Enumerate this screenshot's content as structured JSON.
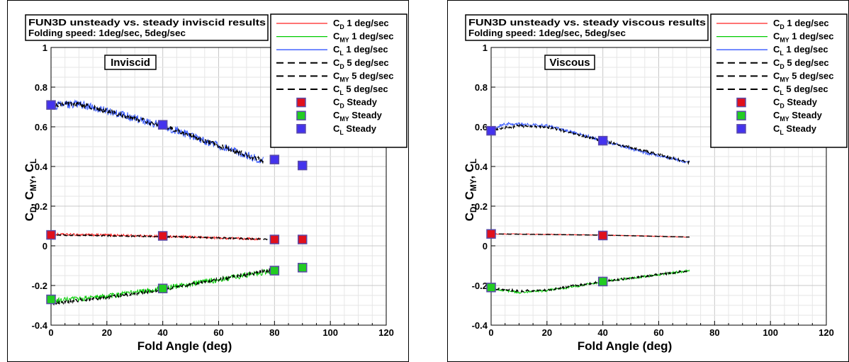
{
  "chart_data": [
    {
      "type": "line",
      "title_lines": [
        "FUN3D unsteady vs. steady inviscid results",
        "Folding speed: 1deg/sec, 5deg/sec"
      ],
      "tag": "Inviscid",
      "xlabel": "Fold Angle (deg)",
      "ylabel": "C_D, C_MY, C_L",
      "xlim": [
        0,
        120
      ],
      "ylim": [
        -0.4,
        1.0
      ],
      "xticks": [
        0,
        20,
        40,
        60,
        80,
        100,
        120
      ],
      "yticks": [
        -0.4,
        -0.2,
        0,
        0.2,
        0.4,
        0.6,
        0.8,
        1
      ],
      "ytick_labels": [
        "-0.4",
        "-0.2",
        "0",
        "0.2",
        "0.4",
        "0.6",
        "0.8",
        "1"
      ],
      "grid": true,
      "legend_position": "top-right",
      "series": [
        {
          "name": "C_D 1 deg/sec",
          "color": "#ff2020",
          "style": "solid",
          "noise": 0.006,
          "points": [
            [
              0,
              0.058
            ],
            [
              20,
              0.054
            ],
            [
              40,
              0.048
            ],
            [
              60,
              0.04
            ],
            [
              75,
              0.034
            ]
          ]
        },
        {
          "name": "C_MY 1 deg/sec",
          "color": "#00cc00",
          "style": "solid",
          "noise": 0.014,
          "points": [
            [
              0,
              -0.28
            ],
            [
              20,
              -0.255
            ],
            [
              40,
              -0.215
            ],
            [
              60,
              -0.17
            ],
            [
              80,
              -0.125
            ]
          ]
        },
        {
          "name": "C_L 1 deg/sec",
          "color": "#3355ff",
          "style": "solid",
          "noise": 0.02,
          "points": [
            [
              0,
              0.705
            ],
            [
              10,
              0.715
            ],
            [
              20,
              0.68
            ],
            [
              30,
              0.645
            ],
            [
              40,
              0.605
            ],
            [
              50,
              0.555
            ],
            [
              60,
              0.505
            ],
            [
              70,
              0.455
            ],
            [
              76,
              0.43
            ]
          ]
        },
        {
          "name": "C_D 5 deg/sec",
          "color": "#000000",
          "style": "dashed",
          "noise": 0.003,
          "points": [
            [
              0,
              0.055
            ],
            [
              40,
              0.047
            ],
            [
              78,
              0.033
            ]
          ]
        },
        {
          "name": "C_MY 5 deg/sec",
          "color": "#000000",
          "style": "dashed",
          "noise": 0.008,
          "points": [
            [
              0,
              -0.29
            ],
            [
              20,
              -0.26
            ],
            [
              40,
              -0.22
            ],
            [
              60,
              -0.17
            ],
            [
              80,
              -0.12
            ]
          ]
        },
        {
          "name": "C_L 5 deg/sec",
          "color": "#000000",
          "style": "dashed",
          "noise": 0.012,
          "points": [
            [
              0,
              0.71
            ],
            [
              10,
              0.715
            ],
            [
              20,
              0.68
            ],
            [
              40,
              0.605
            ],
            [
              60,
              0.505
            ],
            [
              76,
              0.43
            ]
          ]
        }
      ],
      "steady": [
        {
          "name": "C_D Steady",
          "color": "#e0101c",
          "points": [
            [
              0,
              0.055
            ],
            [
              40,
              0.05
            ],
            [
              80,
              0.032
            ],
            [
              90,
              0.032
            ]
          ]
        },
        {
          "name": "C_MY Steady",
          "color": "#22cc22",
          "points": [
            [
              0,
              -0.27
            ],
            [
              40,
              -0.215
            ],
            [
              80,
              -0.125
            ],
            [
              90,
              -0.11
            ]
          ]
        },
        {
          "name": "C_L Steady",
          "color": "#4433ee",
          "points": [
            [
              0,
              0.71
            ],
            [
              40,
              0.61
            ],
            [
              80,
              0.435
            ],
            [
              90,
              0.405
            ]
          ]
        }
      ]
    },
    {
      "type": "line",
      "title_lines": [
        "FUN3D unsteady vs. steady viscous results",
        "Folding speed: 1deg/sec, 5deg/sec"
      ],
      "tag": "Viscous",
      "xlabel": "Fold Angle (deg)",
      "ylabel": "C_D, C_MY, C_L",
      "xlim": [
        0,
        120
      ],
      "ylim": [
        -0.4,
        1.0
      ],
      "xticks": [
        0,
        20,
        40,
        60,
        80,
        100,
        120
      ],
      "yticks": [
        -0.4,
        -0.2,
        0,
        0.2,
        0.4,
        0.6,
        0.8,
        1
      ],
      "ytick_labels": [
        "-0.4",
        "-0.2",
        "0",
        "0.2",
        "0.4",
        "0.6",
        "0.8",
        "1"
      ],
      "grid": true,
      "legend_position": "top-right",
      "series": [
        {
          "name": "C_D 1 deg/sec",
          "color": "#ff2020",
          "style": "solid",
          "noise": 0.002,
          "points": [
            [
              0,
              0.06
            ],
            [
              20,
              0.058
            ],
            [
              40,
              0.054
            ],
            [
              60,
              0.048
            ],
            [
              71,
              0.044
            ]
          ]
        },
        {
          "name": "C_MY 1 deg/sec",
          "color": "#00cc00",
          "style": "solid",
          "noise": 0.006,
          "points": [
            [
              0,
              -0.215
            ],
            [
              10,
              -0.235
            ],
            [
              20,
              -0.225
            ],
            [
              30,
              -0.205
            ],
            [
              40,
              -0.18
            ],
            [
              55,
              -0.155
            ],
            [
              71,
              -0.125
            ]
          ]
        },
        {
          "name": "C_L 1 deg/sec",
          "color": "#3355ff",
          "style": "solid",
          "noise": 0.008,
          "points": [
            [
              0,
              0.585
            ],
            [
              5,
              0.615
            ],
            [
              15,
              0.61
            ],
            [
              20,
              0.605
            ],
            [
              30,
              0.57
            ],
            [
              40,
              0.53
            ],
            [
              55,
              0.47
            ],
            [
              71,
              0.42
            ]
          ]
        },
        {
          "name": "C_D 5 deg/sec",
          "color": "#000000",
          "style": "dashed",
          "noise": 0.0,
          "points": [
            [
              0,
              0.06
            ],
            [
              40,
              0.054
            ],
            [
              71,
              0.044
            ]
          ]
        },
        {
          "name": "C_MY 5 deg/sec",
          "color": "#000000",
          "style": "dashed",
          "noise": 0.005,
          "points": [
            [
              0,
              -0.215
            ],
            [
              10,
              -0.228
            ],
            [
              20,
              -0.222
            ],
            [
              40,
              -0.18
            ],
            [
              71,
              -0.125
            ]
          ]
        },
        {
          "name": "C_L 5 deg/sec",
          "color": "#000000",
          "style": "dashed",
          "noise": 0.006,
          "points": [
            [
              0,
              0.585
            ],
            [
              10,
              0.605
            ],
            [
              20,
              0.6
            ],
            [
              40,
              0.53
            ],
            [
              71,
              0.42
            ]
          ]
        }
      ],
      "steady": [
        {
          "name": "C_D Steady",
          "color": "#e0101c",
          "points": [
            [
              0,
              0.06
            ],
            [
              40,
              0.052
            ]
          ]
        },
        {
          "name": "C_MY Steady",
          "color": "#22cc22",
          "points": [
            [
              0,
              -0.21
            ],
            [
              40,
              -0.18
            ]
          ]
        },
        {
          "name": "C_L Steady",
          "color": "#4433ee",
          "points": [
            [
              0,
              0.58
            ],
            [
              40,
              0.53
            ]
          ]
        }
      ]
    }
  ]
}
